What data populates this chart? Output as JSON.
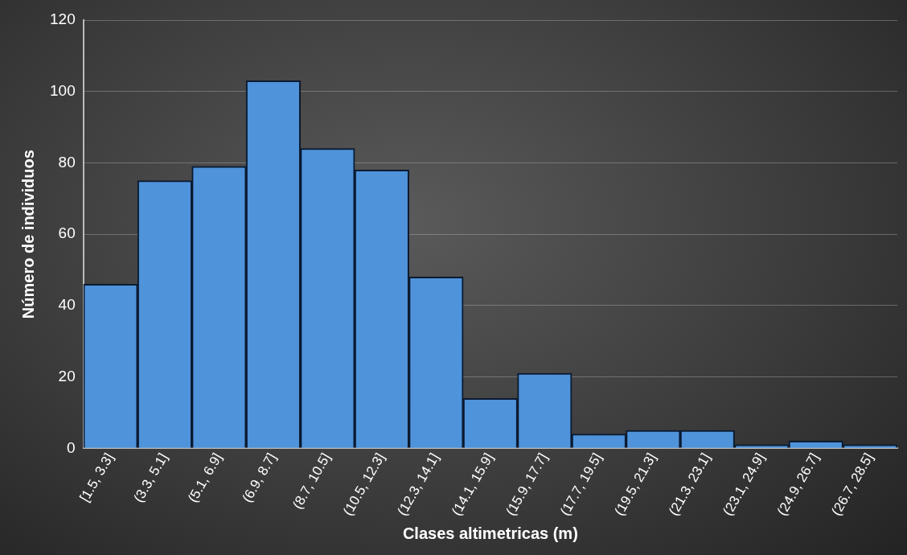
{
  "chart_data": {
    "type": "bar",
    "categories": [
      "[1.5, 3.3]",
      "(3.3, 5.1]",
      "(5.1, 6.9]",
      "(6.9, 8.7]",
      "(8.7, 10.5]",
      "(10.5, 12.3]",
      "(12.3, 14.1]",
      "(14.1, 15.9]",
      "(15.9, 17.7]",
      "(17.7, 19.5]",
      "(19.5, 21.3]",
      "(21.3, 23.1]",
      "(23.1, 24.9]",
      "(24.9, 26.7]",
      "(26.7, 28.5]"
    ],
    "values": [
      46,
      75,
      79,
      103,
      84,
      78,
      48,
      14,
      21,
      4,
      5,
      5,
      1,
      2,
      1
    ],
    "color": "#4f93da",
    "xlabel": "Clases altimetricas (m)",
    "ylabel": "Número de individuos",
    "ylim": [
      0,
      120
    ],
    "yticks": [
      0,
      20,
      40,
      60,
      80,
      100,
      120
    ],
    "grid": "y"
  }
}
